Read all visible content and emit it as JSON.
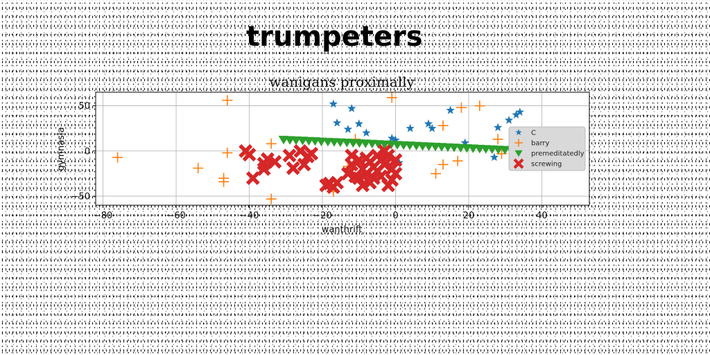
{
  "page": {
    "title": "trumpeters"
  },
  "chart_data": {
    "type": "scatter",
    "title": "wanigans proximally",
    "xlabel": "wanthrift",
    "ylabel": "gymnasia",
    "xlim": [
      -82,
      53
    ],
    "ylim": [
      -60,
      65
    ],
    "xticks": [
      -80,
      -60,
      -40,
      -20,
      0,
      20,
      40
    ],
    "yticks": [
      -50,
      0,
      50
    ],
    "grid": true,
    "legend_position": "right",
    "series": [
      {
        "name": "C",
        "marker": "star",
        "color": "#1f77b4",
        "points": [
          [
            -17,
            52
          ],
          [
            -12,
            47
          ],
          [
            -16,
            31
          ],
          [
            -13,
            24
          ],
          [
            -10,
            30
          ],
          [
            -8,
            20
          ],
          [
            -1,
            14
          ],
          [
            0,
            12
          ],
          [
            4,
            25
          ],
          [
            9,
            30
          ],
          [
            10,
            25
          ],
          [
            15,
            45
          ],
          [
            19,
            9
          ],
          [
            27,
            -7
          ],
          [
            28,
            26
          ],
          [
            31,
            34
          ],
          [
            33,
            40
          ],
          [
            34,
            43
          ],
          [
            39,
            -5
          ],
          [
            47,
            -8
          ],
          [
            -2,
            -15
          ],
          [
            1,
            -13
          ]
        ]
      },
      {
        "name": "barry",
        "marker": "plus",
        "color": "#ff7f0e",
        "points": [
          [
            -76,
            -7
          ],
          [
            -54,
            -19
          ],
          [
            -47,
            -30
          ],
          [
            -47,
            -34
          ],
          [
            -46,
            -2
          ],
          [
            -46,
            56
          ],
          [
            -41,
            -3
          ],
          [
            -34,
            8
          ],
          [
            -34,
            -53
          ],
          [
            -17,
            -45
          ],
          [
            -13,
            -17
          ],
          [
            -11,
            13
          ],
          [
            -1,
            59
          ],
          [
            11,
            -25
          ],
          [
            13,
            -15
          ],
          [
            13,
            28
          ],
          [
            17,
            -11
          ],
          [
            18,
            48
          ],
          [
            23,
            50
          ],
          [
            28,
            13
          ],
          [
            29,
            -3
          ]
        ]
      },
      {
        "name": "premeditatedly",
        "marker": "triangle-down",
        "color": "#2ca02c",
        "points": [
          [
            -30.6,
            12.5
          ],
          [
            -28.9,
            12.1
          ],
          [
            -27.2,
            11.8
          ],
          [
            -25.4,
            11.5
          ],
          [
            -23.7,
            11.2
          ],
          [
            -22.0,
            10.9
          ],
          [
            -20.3,
            10.5
          ],
          [
            -18.5,
            10.2
          ],
          [
            -16.8,
            9.9
          ],
          [
            -15.1,
            9.6
          ],
          [
            -13.3,
            9.3
          ],
          [
            -11.6,
            8.9
          ],
          [
            -9.9,
            8.6
          ],
          [
            -8.2,
            8.3
          ],
          [
            -6.4,
            8.0
          ],
          [
            -4.7,
            7.7
          ],
          [
            -3.0,
            7.3
          ],
          [
            -1.2,
            7.0
          ],
          [
            0.5,
            6.7
          ],
          [
            2.2,
            6.4
          ],
          [
            3.9,
            6.1
          ],
          [
            5.7,
            5.7
          ],
          [
            7.4,
            5.4
          ],
          [
            9.1,
            5.1
          ],
          [
            10.9,
            4.8
          ],
          [
            12.6,
            4.5
          ],
          [
            14.3,
            4.1
          ],
          [
            16.0,
            3.8
          ],
          [
            17.8,
            3.5
          ],
          [
            19.5,
            3.2
          ],
          [
            21.2,
            2.9
          ],
          [
            23.0,
            2.5
          ],
          [
            24.7,
            2.2
          ],
          [
            26.4,
            1.9
          ],
          [
            28.1,
            1.6
          ],
          [
            29.9,
            1.3
          ],
          [
            31.6,
            0.9
          ]
        ]
      },
      {
        "name": "screwing",
        "marker": "x-filled",
        "color": "#d62728",
        "points": [
          [
            -41,
            0
          ],
          [
            -40,
            -4
          ],
          [
            -39,
            -30
          ],
          [
            -36,
            -20
          ],
          [
            -36,
            -14
          ],
          [
            -35,
            -9
          ],
          [
            -33,
            -12
          ],
          [
            -29,
            -5
          ],
          [
            -28,
            -19
          ],
          [
            -26,
            0
          ],
          [
            -25,
            -15
          ],
          [
            -24,
            -6
          ],
          [
            -23,
            -3
          ],
          [
            -19,
            -38
          ],
          [
            -18,
            -36
          ],
          [
            -17,
            -40
          ],
          [
            -16,
            -35
          ],
          [
            -13,
            -25
          ],
          [
            -12,
            -5
          ],
          [
            -12,
            -15
          ],
          [
            -11,
            -28
          ],
          [
            -10,
            -10
          ],
          [
            -10,
            -30
          ],
          [
            -9,
            -38
          ],
          [
            -9,
            -20
          ],
          [
            -8,
            -8
          ],
          [
            -8,
            -25
          ],
          [
            -7,
            -12
          ],
          [
            -7,
            -35
          ],
          [
            -6,
            -18
          ],
          [
            -6,
            -30
          ],
          [
            -5,
            -5
          ],
          [
            -5,
            -22
          ],
          [
            -4,
            -10
          ],
          [
            -4,
            -28
          ],
          [
            -3,
            -15
          ],
          [
            -2,
            -38
          ],
          [
            -2,
            -5
          ],
          [
            -1,
            -20
          ],
          [
            -1,
            -32
          ],
          [
            0,
            -10
          ],
          [
            0,
            -25
          ],
          [
            -3,
            0
          ]
        ]
      }
    ]
  }
}
